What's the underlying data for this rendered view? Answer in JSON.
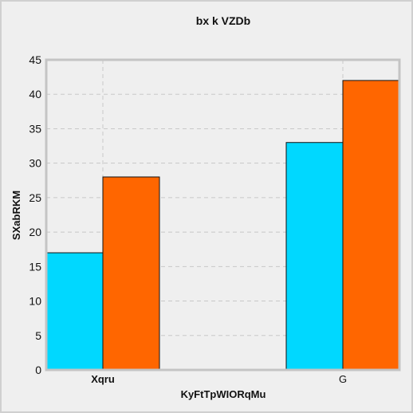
{
  "chart_data": {
    "type": "bar",
    "title": "bx k VZDb",
    "xlabel": "KyFtTpWIORqMu",
    "ylabel": "SXabRKM",
    "categories": [
      "Xqru",
      "G"
    ],
    "category_bold": [
      true,
      false
    ],
    "series": [
      {
        "values": [
          17,
          33
        ],
        "color": "#00d8ff"
      },
      {
        "values": [
          28,
          42
        ],
        "color": "#ff6600"
      }
    ],
    "ylim": [
      0,
      45
    ],
    "yticks": [
      0,
      5,
      10,
      15,
      20,
      25,
      30,
      35,
      40,
      45
    ],
    "grid": true
  }
}
